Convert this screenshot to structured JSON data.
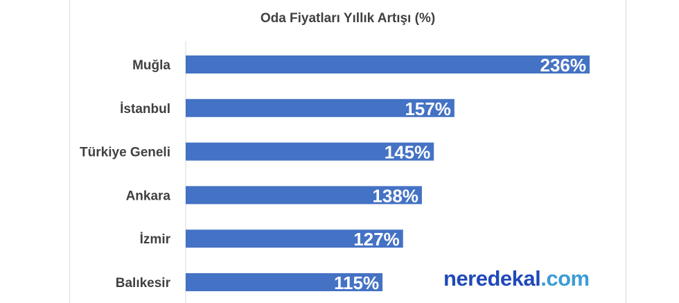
{
  "chart_data": {
    "type": "bar",
    "orientation": "horizontal",
    "title": "Oda Fiyatları Yıllık Artışı (%)",
    "categories": [
      "Muğla",
      "İstanbul",
      "Türkiye Geneli",
      "Ankara",
      "İzmir",
      "Balıkesir"
    ],
    "values": [
      236,
      157,
      145,
      138,
      127,
      115
    ],
    "data_labels": [
      "236%",
      "157%",
      "145%",
      "138%",
      "127%",
      "115%"
    ],
    "xlim": [
      0,
      236
    ],
    "grid": false,
    "legend": "none",
    "bar_color": "#4472c4"
  },
  "brand": {
    "name_part": "neredekal",
    "tld_part": ".com",
    "name_color": "#1f49b8",
    "tld_color": "#3d9bd6"
  }
}
